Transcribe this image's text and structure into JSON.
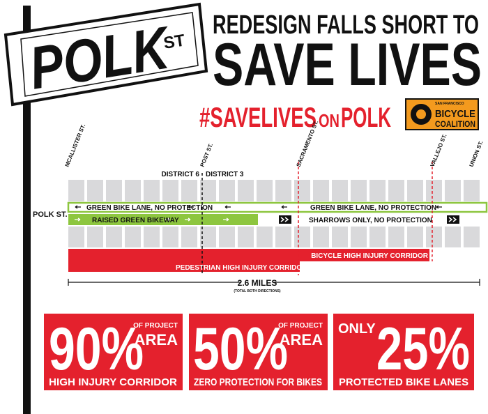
{
  "sign": {
    "street": "POLK",
    "suffix": "ST"
  },
  "header": {
    "line1": "REDESIGN FALLS SHORT TO",
    "line2": "SAVE LIVES"
  },
  "hashtag": {
    "part1": "#SAVELIVES",
    "part2": "ON",
    "part3": "POLK"
  },
  "logo": {
    "line1": "SAN FRANCISCO",
    "line2": "BICYCLE",
    "line3": "COALITION"
  },
  "map": {
    "cross_streets": [
      "MCALLISTER ST.",
      "POST ST.",
      "SACRAMENTO ST.",
      "VALLEJO ST.",
      "UNION ST."
    ],
    "districts": [
      "DISTRICT 6",
      "DISTRICT 3"
    ],
    "street": "POLK ST.",
    "lanes": [
      "GREEN BIKE LANE, NO PROTECTION",
      "GREEN BIKE LANE, NO PROTECTION",
      "RAISED GREEN BIKEWAY",
      "SHARROWS ONLY, NO PROTECTION"
    ],
    "corridors": [
      "BICYCLE HIGH INJURY CORRIDOR",
      "PEDESTRIAN HIGH INJURY CORRIDOR"
    ],
    "distance": "2.6 MILES",
    "distance_note": "(TOTAL BOTH DIRECTIONS)"
  },
  "stats": [
    {
      "value": "90%",
      "qualifier": [
        "OF PROJECT",
        "AREA"
      ],
      "caption": "HIGH INJURY CORRIDOR"
    },
    {
      "value": "50%",
      "qualifier": [
        "OF PROJECT",
        "AREA"
      ],
      "caption": "ZERO PROTECTION FOR BIKES"
    },
    {
      "prefix": "ONLY",
      "value": "25%",
      "caption": "PROTECTED BIKE LANES"
    }
  ]
}
